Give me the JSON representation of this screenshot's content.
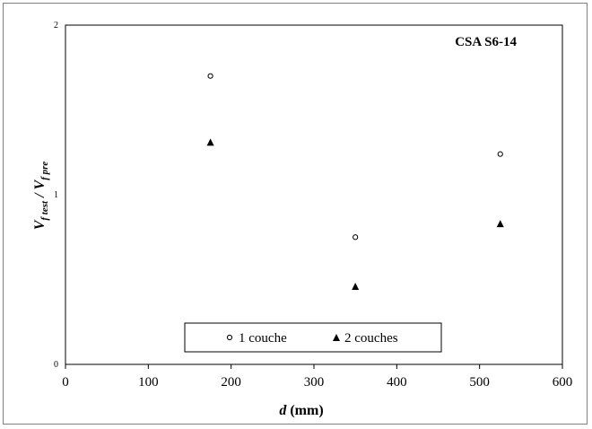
{
  "chart_data": {
    "type": "scatter",
    "title": "CSA S6-14",
    "xlabel": {
      "main": "d",
      "unit": " (mm)"
    },
    "ylabel": {
      "v1": "V",
      "sub1": "f test",
      "sep": "  / ",
      "v2": "V",
      "sub2": "f pre"
    },
    "xlim": [
      0,
      600
    ],
    "ylim": [
      0,
      2
    ],
    "x_ticks": [
      "0",
      "100",
      "200",
      "300",
      "400",
      "500",
      "600"
    ],
    "y_ticks": [
      "0",
      "1",
      "2"
    ],
    "grid": false,
    "legend_position": "bottom-center",
    "series": [
      {
        "name": "1 couche",
        "marker": "circle",
        "points": [
          {
            "x": 175,
            "y": 1.7
          },
          {
            "x": 350,
            "y": 0.75
          },
          {
            "x": 525,
            "y": 1.24
          }
        ]
      },
      {
        "name": "2 couches",
        "marker": "triangle",
        "points": [
          {
            "x": 175,
            "y": 1.31
          },
          {
            "x": 350,
            "y": 0.46
          },
          {
            "x": 525,
            "y": 0.83
          }
        ]
      }
    ]
  }
}
